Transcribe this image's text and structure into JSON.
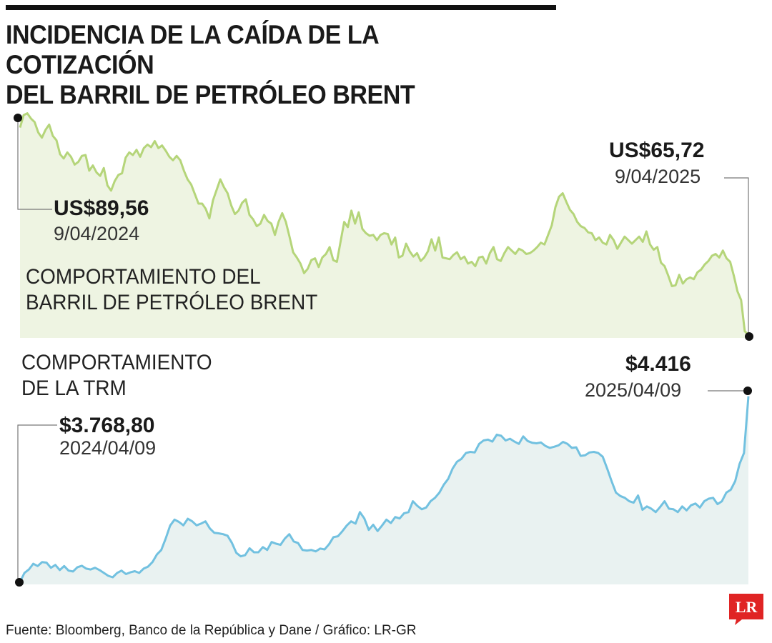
{
  "title": {
    "line1": "INCIDENCIA DE LA CAÍDA DE LA COTIZACIÓN",
    "line2": "DEL BARRIL DE PETRÓLEO BRENT"
  },
  "source": "Fuente: Bloomberg, Banco de la República y Dane / Gráfico: LR-GR",
  "logo_text": "LR",
  "colors": {
    "brent_line": "#b5d57a",
    "brent_fill": "#eef4e2",
    "trm_line": "#72c1e0",
    "trm_fill": "#e9f2f1",
    "logo": "#e02424",
    "markers": "#111111"
  },
  "chart_data": [
    {
      "type": "area",
      "label_line1": "COMPORTAMIENTO DEL",
      "label_line2": "BARRIL DE PETRÓLEO BRENT",
      "x_range": [
        "2024-04-09",
        "2025-04-09"
      ],
      "y_range": [
        65.5,
        91.5
      ],
      "start": {
        "date": "9/04/2024",
        "value": 89.56,
        "value_label": "US$89,56"
      },
      "end": {
        "date": "9/04/2025",
        "value": 65.72,
        "value_label": "US$65,72"
      },
      "values": [
        89.56,
        91.0,
        91.2,
        90.6,
        90.2,
        89.0,
        88.4,
        89.3,
        89.9,
        88.6,
        88.1,
        86.5,
        86.0,
        86.7,
        86.2,
        85.3,
        85.6,
        86.3,
        86.4,
        84.6,
        85.2,
        84.4,
        84.0,
        84.9,
        82.9,
        82.3,
        83.4,
        84.1,
        84.3,
        86.1,
        86.7,
        86.4,
        87.0,
        86.2,
        87.2,
        87.6,
        87.3,
        88.0,
        87.2,
        87.5,
        86.9,
        86.2,
        85.8,
        86.3,
        85.8,
        84.6,
        83.6,
        83.0,
        81.9,
        80.8,
        80.8,
        80.2,
        79.1,
        81.2,
        82.4,
        83.6,
        82.7,
        82.0,
        80.6,
        79.6,
        80.0,
        80.9,
        81.3,
        79.5,
        79.0,
        78.2,
        78.5,
        79.5,
        78.8,
        78.5,
        77.2,
        78.7,
        79.7,
        78.7,
        77.0,
        75.2,
        74.6,
        73.9,
        72.8,
        73.3,
        74.3,
        74.5,
        73.5,
        74.6,
        75.0,
        75.8,
        74.3,
        74.1,
        76.4,
        78.7,
        78.1,
        80.0,
        78.5,
        79.8,
        77.9,
        77.4,
        77.1,
        77.2,
        76.6,
        77.2,
        77.4,
        77.3,
        76.1,
        76.9,
        74.6,
        74.8,
        76.2,
        75.3,
        74.7,
        75.1,
        74.2,
        74.6,
        75.3,
        76.7,
        75.4,
        76.9,
        74.6,
        74.5,
        74.4,
        74.9,
        75.2,
        74.4,
        74.7,
        73.9,
        74.1,
        73.6,
        74.6,
        74.7,
        73.9,
        75.1,
        75.8,
        74.4,
        74.2,
        75.1,
        75.8,
        75.4,
        75.0,
        75.6,
        75.4,
        75.0,
        75.1,
        75.4,
        75.8,
        76.3,
        76.1,
        77.2,
        78.3,
        80.4,
        81.6,
        82.0,
        81.0,
        80.1,
        79.6,
        78.7,
        78.2,
        78.0,
        77.5,
        77.4,
        76.6,
        76.9,
        76.3,
        76.1,
        77.2,
        76.6,
        75.6,
        76.3,
        77.0,
        76.6,
        76.2,
        76.6,
        77.0,
        76.4,
        77.6,
        76.1,
        75.5,
        75.8,
        74.0,
        73.6,
        72.5,
        71.3,
        71.4,
        72.6,
        71.6,
        72.1,
        72.3,
        72.1,
        72.9,
        73.2,
        73.8,
        74.2,
        74.8,
        75.0,
        74.6,
        75.4,
        74.5,
        74.1,
        72.5,
        70.7,
        69.7,
        66.1,
        65.72
      ]
    },
    {
      "type": "area",
      "label_line1": "COMPORTAMIENTO",
      "label_line2": "DE LA TRM",
      "x_range": [
        "2024-04-09",
        "2025-04-09"
      ],
      "y_range": [
        3760,
        4440
      ],
      "start": {
        "date": "2024/04/09",
        "value": 3768.8,
        "value_label": "$3.768,80"
      },
      "end": {
        "date": "2025/04/09",
        "value": 4416,
        "value_label": "$4.416"
      },
      "values": [
        3768.8,
        3800,
        3812,
        3832,
        3824,
        3838,
        3836,
        3818,
        3828,
        3810,
        3824,
        3808,
        3805,
        3820,
        3825,
        3815,
        3812,
        3818,
        3810,
        3800,
        3790,
        3785,
        3800,
        3808,
        3796,
        3802,
        3806,
        3800,
        3815,
        3822,
        3838,
        3864,
        3880,
        3920,
        3965,
        3986,
        3978,
        3966,
        3989,
        3980,
        3966,
        3972,
        3980,
        3955,
        3940,
        3938,
        3935,
        3930,
        3905,
        3870,
        3858,
        3862,
        3886,
        3872,
        3872,
        3890,
        3880,
        3908,
        3902,
        3898,
        3920,
        3935,
        3910,
        3904,
        3880,
        3878,
        3880,
        3875,
        3885,
        3882,
        3900,
        3925,
        3928,
        3945,
        3965,
        3980,
        3972,
        4012,
        3990,
        3950,
        3968,
        3946,
        3965,
        3986,
        3974,
        3995,
        3990,
        4008,
        4012,
        4050,
        4034,
        4022,
        4028,
        4050,
        4062,
        4080,
        4108,
        4128,
        4164,
        4188,
        4198,
        4218,
        4222,
        4220,
        4250,
        4262,
        4265,
        4258,
        4282,
        4278,
        4262,
        4268,
        4258,
        4250,
        4276,
        4260,
        4254,
        4252,
        4255,
        4243,
        4236,
        4240,
        4245,
        4257,
        4250,
        4236,
        4238,
        4208,
        4210,
        4220,
        4222,
        4218,
        4205,
        4164,
        4120,
        4080,
        4068,
        4062,
        4050,
        4045,
        4070,
        4020,
        4032,
        4024,
        4012,
        4030,
        4050,
        4024,
        4022,
        4012,
        4032,
        4018,
        4036,
        4042,
        4028,
        4050,
        4059,
        4062,
        4040,
        4050,
        4080,
        4090,
        4120,
        4180,
        4218,
        4416
      ]
    }
  ]
}
